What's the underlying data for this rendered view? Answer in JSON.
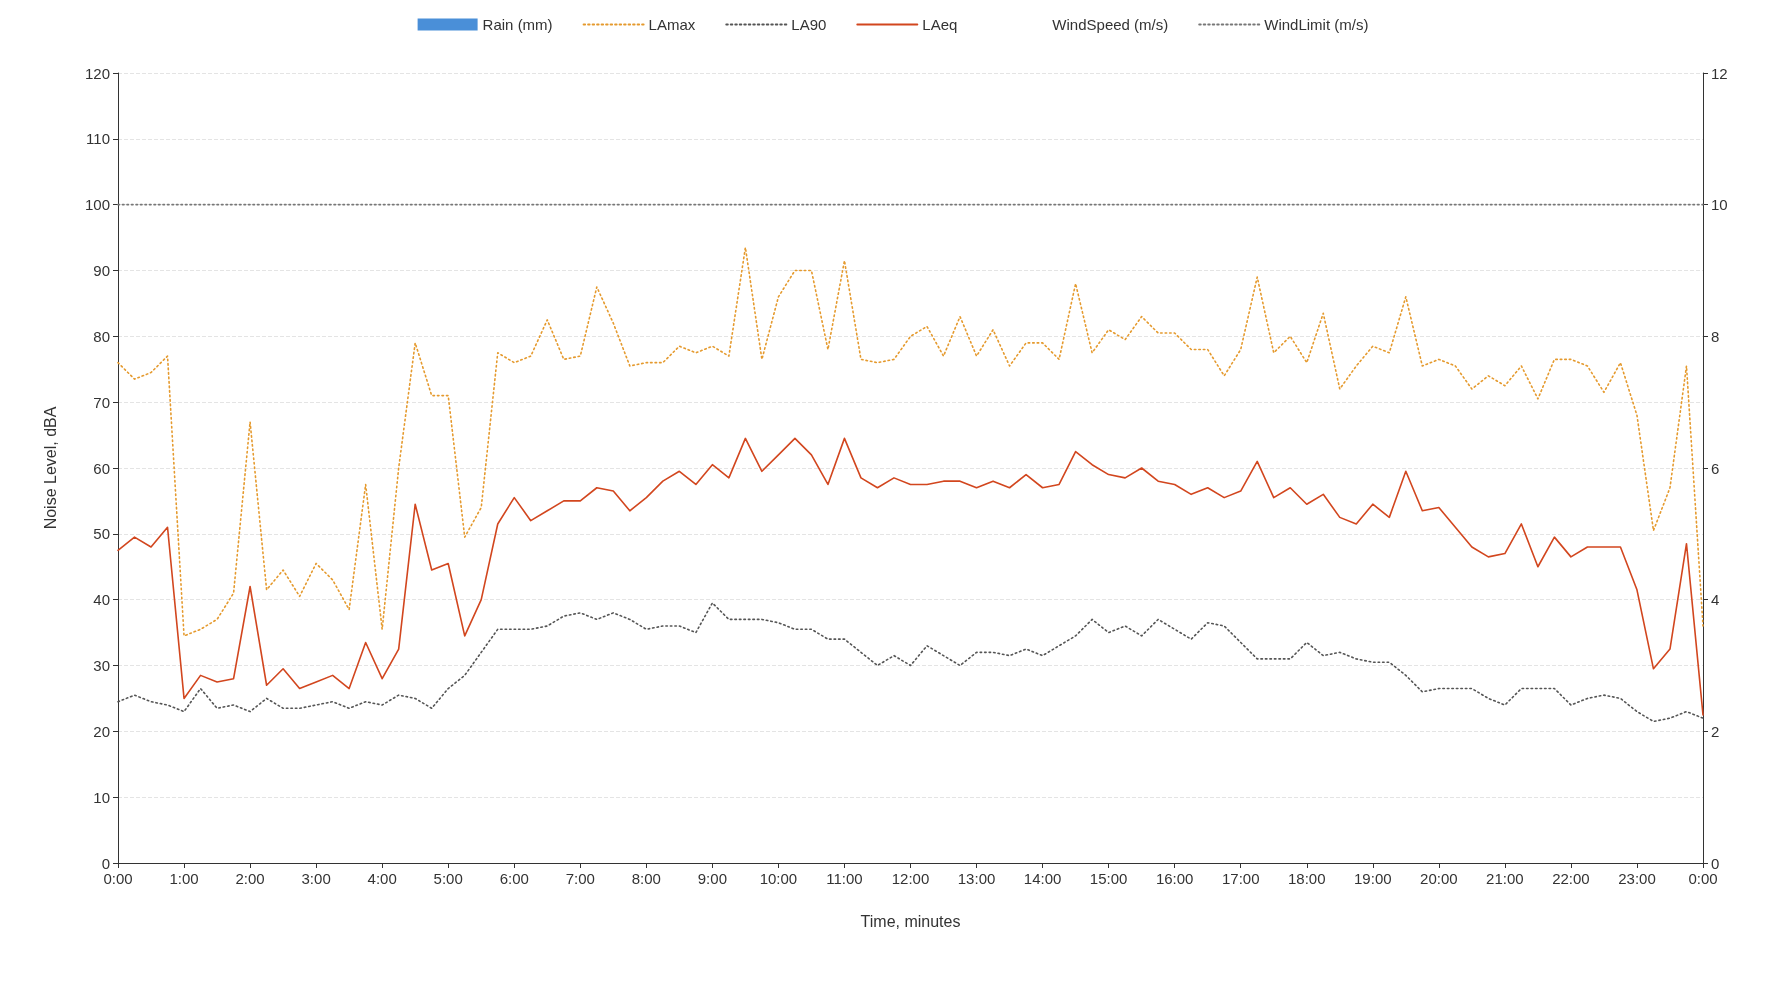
{
  "chart_data": {
    "type": "line",
    "xlabel": "Time, minutes",
    "ylabel": "Noise Level, dBA",
    "x": [
      0,
      0.25,
      0.5,
      0.75,
      1,
      1.25,
      1.5,
      1.75,
      2,
      2.25,
      2.5,
      2.75,
      3,
      3.25,
      3.5,
      3.75,
      4,
      4.25,
      4.5,
      4.75,
      5,
      5.25,
      5.5,
      5.75,
      6,
      6.25,
      6.5,
      6.75,
      7,
      7.25,
      7.5,
      7.75,
      8,
      8.25,
      8.5,
      8.75,
      9,
      9.25,
      9.5,
      9.75,
      10,
      10.25,
      10.5,
      10.75,
      11,
      11.25,
      11.5,
      11.75,
      12,
      12.25,
      12.5,
      12.75,
      13,
      13.25,
      13.5,
      13.75,
      14,
      14.25,
      14.5,
      14.75,
      15,
      15.25,
      15.5,
      15.75,
      16,
      16.25,
      16.5,
      16.75,
      17,
      17.25,
      17.5,
      17.75,
      18,
      18.25,
      18.5,
      18.75,
      19,
      19.25,
      19.5,
      19.75,
      20,
      20.25,
      20.5,
      20.75,
      21,
      21.25,
      21.5,
      21.75,
      22,
      22.25,
      22.5,
      22.75,
      23,
      23.25,
      23.5,
      23.75,
      24
    ],
    "series": [
      {
        "name": "Rain (mm)",
        "type": "bar",
        "color": "#4a8fd8",
        "values": [
          null,
          null,
          null,
          null,
          null,
          null,
          null,
          null,
          null,
          null,
          null,
          null,
          null,
          null,
          null,
          null,
          null,
          null,
          null,
          null,
          null,
          null,
          null,
          null,
          null,
          null,
          null,
          null,
          null,
          null,
          null,
          null,
          null,
          null,
          null,
          null,
          null,
          null,
          null,
          null,
          null,
          null,
          null,
          null,
          null,
          null,
          null,
          null,
          null,
          null,
          null,
          null,
          null,
          null,
          null,
          null,
          null,
          null,
          null,
          null,
          null,
          null,
          null,
          null,
          null,
          null,
          null,
          null,
          null,
          null,
          null,
          null,
          null,
          null,
          null,
          null,
          null,
          null,
          null,
          null,
          null,
          null,
          null,
          null,
          null,
          null,
          null,
          null,
          null,
          null,
          null,
          null,
          null,
          null,
          null,
          null,
          null
        ]
      },
      {
        "name": "LAmax",
        "color": "#e59a2e",
        "line_style": "dotted",
        "values": [
          76,
          73.5,
          74.5,
          77,
          34.5,
          35.5,
          37,
          41,
          67,
          41.5,
          44.5,
          40.5,
          45.5,
          43,
          38.5,
          57.5,
          35.5,
          60,
          79,
          71,
          71,
          49.5,
          54,
          77.5,
          76,
          77,
          82.5,
          76.5,
          77,
          87.5,
          82,
          75.5,
          76,
          76,
          78.5,
          77.5,
          78.5,
          77,
          93.5,
          76.5,
          86,
          90,
          90,
          78,
          91.5,
          76.5,
          76,
          76.5,
          80,
          81.5,
          77,
          83,
          77,
          81,
          75.5,
          79,
          79,
          76.5,
          88,
          77.5,
          81,
          79.5,
          83,
          80.5,
          80.5,
          78,
          78,
          74,
          78,
          89,
          77.5,
          80,
          76,
          83.5,
          72,
          75.5,
          78.5,
          77.5,
          86,
          75.5,
          76.5,
          75.5,
          72,
          74,
          72.5,
          75.5,
          70.5,
          76.5,
          76.5,
          75.5,
          71.5,
          76,
          68,
          50.5,
          57,
          75.5,
          36
        ]
      },
      {
        "name": "LA90",
        "color": "#555555",
        "line_style": "dotted",
        "values": [
          24.5,
          25.5,
          24.5,
          24,
          23,
          26.5,
          23.5,
          24,
          23,
          25,
          23.5,
          23.5,
          24,
          24.5,
          23.5,
          24.5,
          24,
          25.5,
          25,
          23.5,
          26.5,
          28.5,
          32,
          35.5,
          35.5,
          35.5,
          36,
          37.5,
          38,
          37,
          38,
          37,
          35.5,
          36,
          36,
          35,
          39.5,
          37,
          37,
          37,
          36.5,
          35.5,
          35.5,
          34,
          34,
          32,
          30,
          31.5,
          30,
          33,
          31.5,
          30,
          32,
          32,
          31.5,
          32.5,
          31.5,
          33,
          34.5,
          37,
          35,
          36,
          34.5,
          37,
          35.5,
          34,
          36.5,
          36,
          33.5,
          31,
          31,
          31,
          33.5,
          31.5,
          32,
          31,
          30.5,
          30.5,
          28.5,
          26,
          26.5,
          26.5,
          26.5,
          25,
          24,
          26.5,
          26.5,
          26.5,
          24,
          25,
          25.5,
          25,
          23,
          21.5,
          22,
          23,
          22
        ]
      },
      {
        "name": "LAeq",
        "color": "#d2461e",
        "line_style": "solid",
        "values": [
          47.5,
          49.5,
          48,
          51,
          25,
          28.5,
          27.5,
          28,
          42,
          27,
          29.5,
          26.5,
          27.5,
          28.5,
          26.5,
          33.5,
          28,
          32.5,
          54.5,
          44.5,
          45.5,
          34.5,
          40,
          51.5,
          55.5,
          52,
          53.5,
          55,
          55,
          57,
          56.5,
          53.5,
          55.5,
          58,
          59.5,
          57.5,
          60.5,
          58.5,
          64.5,
          59.5,
          62,
          64.5,
          62,
          57.5,
          64.5,
          58.5,
          57,
          58.5,
          57.5,
          57.5,
          58,
          58,
          57,
          58,
          57,
          59,
          57,
          57.5,
          62.5,
          60.5,
          59,
          58.5,
          60,
          58,
          57.5,
          56,
          57,
          55.5,
          56.5,
          61,
          55.5,
          57,
          54.5,
          56,
          52.5,
          51.5,
          54.5,
          52.5,
          59.5,
          53.5,
          54,
          51,
          48,
          46.5,
          47,
          51.5,
          45,
          49.5,
          46.5,
          48,
          48,
          48,
          41.5,
          29.5,
          32.5,
          48.5,
          22.5
        ]
      },
      {
        "name": "WindSpeed (m/s)",
        "values": [
          null,
          null,
          null,
          null,
          null,
          null,
          null,
          null,
          null,
          null,
          null,
          null,
          null,
          null,
          null,
          null,
          null,
          null,
          null,
          null,
          null,
          null,
          null,
          null,
          null,
          null,
          null,
          null,
          null,
          null,
          null,
          null,
          null,
          null,
          null,
          null,
          null,
          null,
          null,
          null,
          null,
          null,
          null,
          null,
          null,
          null,
          null,
          null,
          null,
          null,
          null,
          null,
          null,
          null,
          null,
          null,
          null,
          null,
          null,
          null,
          null,
          null,
          null,
          null,
          null,
          null,
          null,
          null,
          null,
          null,
          null,
          null,
          null,
          null,
          null,
          null,
          null,
          null,
          null,
          null,
          null,
          null,
          null,
          null,
          null,
          null,
          null,
          null,
          null,
          null,
          null,
          null,
          null,
          null,
          null,
          null,
          null
        ]
      },
      {
        "name": "WindLimit (m/s)",
        "color": "#777777",
        "axis": "y2",
        "line_style": "dotted",
        "x": [
          0,
          24
        ],
        "values": [
          10,
          10
        ]
      }
    ],
    "xlim": [
      0,
      24
    ],
    "xticks": [
      {
        "value": 0,
        "label": "0:00"
      },
      {
        "value": 1,
        "label": "1:00"
      },
      {
        "value": 2,
        "label": "2:00"
      },
      {
        "value": 3,
        "label": "3:00"
      },
      {
        "value": 4,
        "label": "4:00"
      },
      {
        "value": 5,
        "label": "5:00"
      },
      {
        "value": 6,
        "label": "6:00"
      },
      {
        "value": 7,
        "label": "7:00"
      },
      {
        "value": 8,
        "label": "8:00"
      },
      {
        "value": 9,
        "label": "9:00"
      },
      {
        "value": 10,
        "label": "10:00"
      },
      {
        "value": 11,
        "label": "11:00"
      },
      {
        "value": 12,
        "label": "12:00"
      },
      {
        "value": 13,
        "label": "13:00"
      },
      {
        "value": 14,
        "label": "14:00"
      },
      {
        "value": 15,
        "label": "15:00"
      },
      {
        "value": 16,
        "label": "16:00"
      },
      {
        "value": 17,
        "label": "17:00"
      },
      {
        "value": 18,
        "label": "18:00"
      },
      {
        "value": 19,
        "label": "19:00"
      },
      {
        "value": 20,
        "label": "20:00"
      },
      {
        "value": 21,
        "label": "21:00"
      },
      {
        "value": 22,
        "label": "22:00"
      },
      {
        "value": 23,
        "label": "23:00"
      },
      {
        "value": 24,
        "label": "0:00"
      }
    ],
    "ylim": [
      0,
      120
    ],
    "yticks": [
      0,
      10,
      20,
      30,
      40,
      50,
      60,
      70,
      80,
      90,
      100,
      110,
      120
    ],
    "y2lim": [
      0,
      12
    ],
    "y2ticks": [
      0,
      2,
      4,
      6,
      8,
      10,
      12
    ],
    "grid": "y",
    "legend": "top",
    "marker": "none"
  }
}
